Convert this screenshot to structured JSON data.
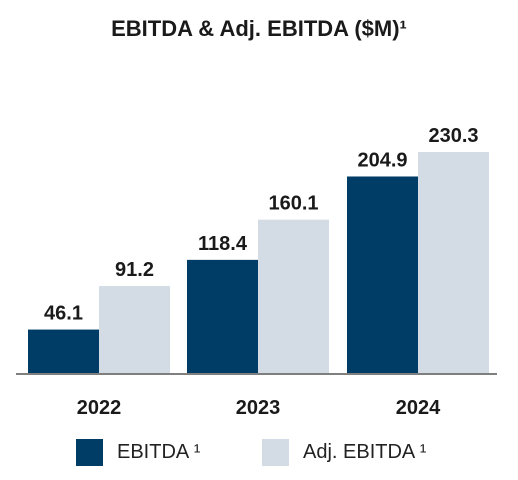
{
  "chart_data": {
    "type": "bar",
    "title": "EBITDA & Adj. EBITDA ($M)¹",
    "categories": [
      "2022",
      "2023",
      "2024"
    ],
    "series": [
      {
        "name": "EBITDA ¹",
        "values": [
          46.1,
          118.4,
          204.9
        ],
        "color": "#003d66",
        "labels": [
          "46.1",
          "118.4",
          "204.9"
        ]
      },
      {
        "name": "Adj. EBITDA ¹",
        "values": [
          91.2,
          160.1,
          230.3
        ],
        "color": "#d3dce5",
        "labels": [
          "91.2",
          "160.1",
          "230.3"
        ]
      }
    ],
    "xlabel": "",
    "ylabel": "",
    "ylim": [
      0,
      230.3
    ],
    "grid": false,
    "legend": "bottom",
    "axis_color": "#7f7f7f"
  }
}
